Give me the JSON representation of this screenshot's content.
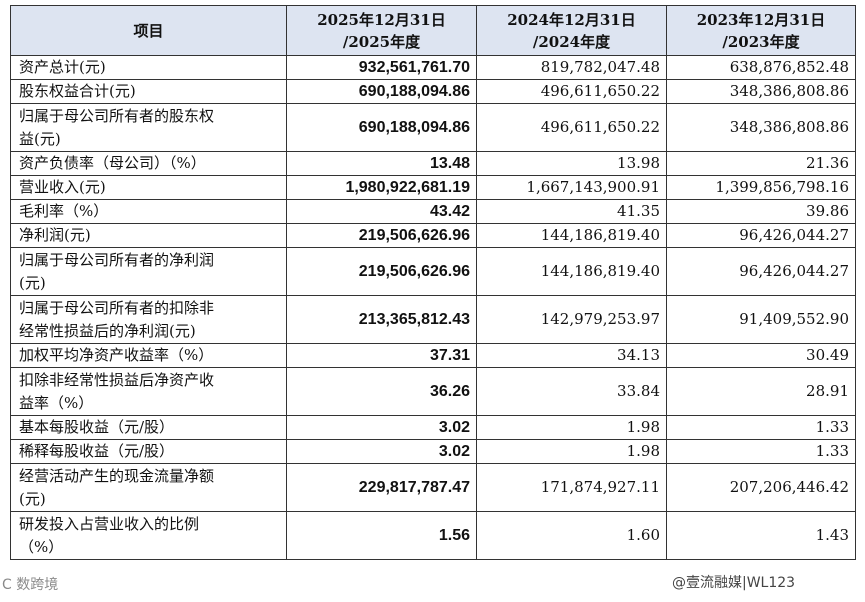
{
  "table": {
    "headers": {
      "item": "项目",
      "y2025": [
        "2025年12月31日",
        "/2025年度"
      ],
      "y2024": [
        "2024年12月31日",
        "/2024年度"
      ],
      "y2023": [
        "2023年12月31日",
        "/2023年度"
      ]
    },
    "rows": [
      {
        "label": [
          "资产总计(元)"
        ],
        "v2025": "932,561,761.70",
        "v2024": "819,782,047.48",
        "v2023": "638,876,852.48"
      },
      {
        "label": [
          "股东权益合计(元)"
        ],
        "v2025": "690,188,094.86",
        "v2024": "496,611,650.22",
        "v2023": "348,386,808.86"
      },
      {
        "label": [
          "归属于母公司所有者的股东权",
          "益(元)"
        ],
        "v2025": "690,188,094.86",
        "v2024": "496,611,650.22",
        "v2023": "348,386,808.86"
      },
      {
        "label": [
          "资产负债率（母公司）（%）"
        ],
        "v2025": "13.48",
        "v2024": "13.98",
        "v2023": "21.36"
      },
      {
        "label": [
          "营业收入(元)"
        ],
        "v2025": "1,980,922,681.19",
        "v2024": "1,667,143,900.91",
        "v2023": "1,399,856,798.16"
      },
      {
        "label": [
          "毛利率（%）"
        ],
        "v2025": "43.42",
        "v2024": "41.35",
        "v2023": "39.86"
      },
      {
        "label": [
          "净利润(元)"
        ],
        "v2025": "219,506,626.96",
        "v2024": "144,186,819.40",
        "v2023": "96,426,044.27"
      },
      {
        "label": [
          "归属于母公司所有者的净利润",
          "(元)"
        ],
        "v2025": "219,506,626.96",
        "v2024": "144,186,819.40",
        "v2023": "96,426,044.27"
      },
      {
        "label": [
          "归属于母公司所有者的扣除非",
          "经常性损益后的净利润(元)"
        ],
        "v2025": "213,365,812.43",
        "v2024": "142,979,253.97",
        "v2023": "91,409,552.90"
      },
      {
        "label": [
          "加权平均净资产收益率（%）"
        ],
        "v2025": "37.31",
        "v2024": "34.13",
        "v2023": "30.49"
      },
      {
        "label": [
          "扣除非经常性损益后净资产收",
          "益率（%）"
        ],
        "v2025": "36.26",
        "v2024": "33.84",
        "v2023": "28.91"
      },
      {
        "label": [
          "基本每股收益（元/股）"
        ],
        "v2025": "3.02",
        "v2024": "1.98",
        "v2023": "1.33"
      },
      {
        "label": [
          "稀释每股收益（元/股）"
        ],
        "v2025": "3.02",
        "v2024": "1.98",
        "v2023": "1.33"
      },
      {
        "label": [
          "经营活动产生的现金流量净额",
          "(元)"
        ],
        "v2025": "229,817,787.47",
        "v2024": "171,874,927.11",
        "v2023": "207,206,446.42"
      },
      {
        "label": [
          "研发投入占营业收入的比例",
          "（%）"
        ],
        "v2025": "1.56",
        "v2024": "1.60",
        "v2023": "1.43"
      }
    ]
  },
  "watermarks": {
    "left": "C 数跨境",
    "right": "@壹流融媒|WL123"
  }
}
